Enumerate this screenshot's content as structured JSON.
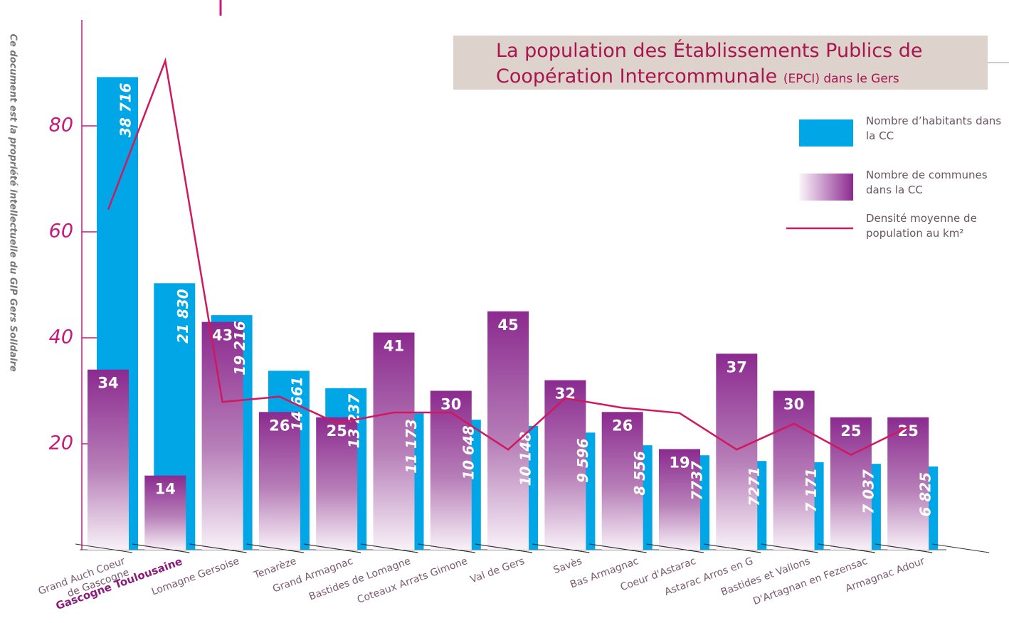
{
  "chart_data": {
    "type": "bar",
    "title": "La population des Établissements Publics de Coopération Intercommunale",
    "title_note": "(EPCI) dans le Gers",
    "watermark": "Ce document est la propriété intellectuelle du GIP Gers Solidaire",
    "categories": [
      "Grand Auch Coeur\nde Gascogne",
      "Gascogne Toulousaine",
      "Lomagne Gersoise",
      "Tenarèze",
      "Grand Armagnac",
      "Bastides de Lomagne",
      "Coteaux Arrats Gimone",
      "Val de Gers",
      "Savès",
      "Bas Armagnac",
      "Coeur d'Astarac",
      "Astarac Arros en G",
      "Bastides et Vallons",
      "D'Artagnan en Fezensac",
      "Armagnac Adour"
    ],
    "highlight_category": 1,
    "ylim": [
      0,
      100
    ],
    "yticks": [
      20,
      40,
      60,
      80
    ],
    "y2lim": [
      0,
      43400
    ],
    "series": [
      {
        "name": "Nombre d’habitants dans la CC",
        "color": "#00a6e6",
        "axis": "y2",
        "style": "bar",
        "values": [
          38716,
          21830,
          19216,
          14661,
          13237,
          11173,
          10648,
          10148,
          9596,
          8556,
          7737,
          7271,
          7171,
          7037,
          6825
        ],
        "value_labels": [
          "38 716",
          "21 830",
          "19 216",
          "14 661",
          "13 237",
          "11 173",
          "10 648",
          "10 148",
          "9 596",
          "8 556",
          "7737",
          "7271",
          "7 171",
          "7 037",
          "6 825"
        ]
      },
      {
        "name": "Nombre de communes dans la CC",
        "color": "#8b2a8f",
        "style": "gradient-bar",
        "values": [
          34,
          14,
          43,
          26,
          25,
          41,
          30,
          45,
          32,
          26,
          19,
          37,
          30,
          25,
          25
        ]
      },
      {
        "name": "Densité moyenne de population au km²",
        "color": "#d0185f",
        "style": "line",
        "values": [
          64.2,
          92.3,
          27.9,
          28.9,
          23.9,
          25.9,
          25.9,
          18.9,
          28.6,
          26.8,
          25.8,
          18.9,
          23.8,
          17.9,
          23.2
        ]
      }
    ]
  }
}
